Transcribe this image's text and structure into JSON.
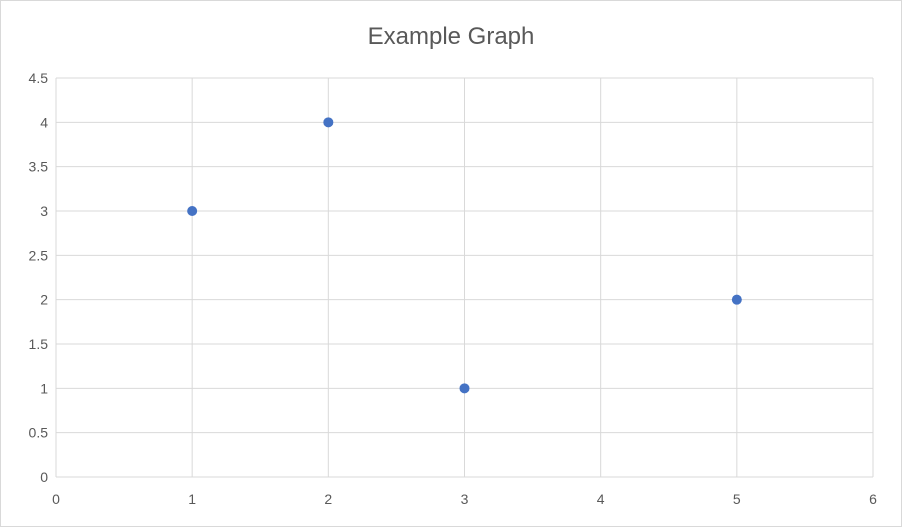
{
  "chart_data": {
    "type": "scatter",
    "title": "Example Graph",
    "xlabel": "",
    "ylabel": "",
    "xlim": [
      0,
      6
    ],
    "ylim": [
      0,
      4.5
    ],
    "xticks": [
      "0",
      "1",
      "2",
      "3",
      "4",
      "5",
      "6"
    ],
    "yticks": [
      "0",
      "0.5",
      "1",
      "1.5",
      "2",
      "2.5",
      "3",
      "3.5",
      "4",
      "4.5"
    ],
    "grid": true,
    "points": [
      {
        "x": 1,
        "y": 3
      },
      {
        "x": 2,
        "y": 4
      },
      {
        "x": 3,
        "y": 1
      },
      {
        "x": 5,
        "y": 2
      }
    ],
    "colors": {
      "marker": "#4472C4",
      "grid": "#D9D9D9",
      "text": "#595959"
    }
  }
}
